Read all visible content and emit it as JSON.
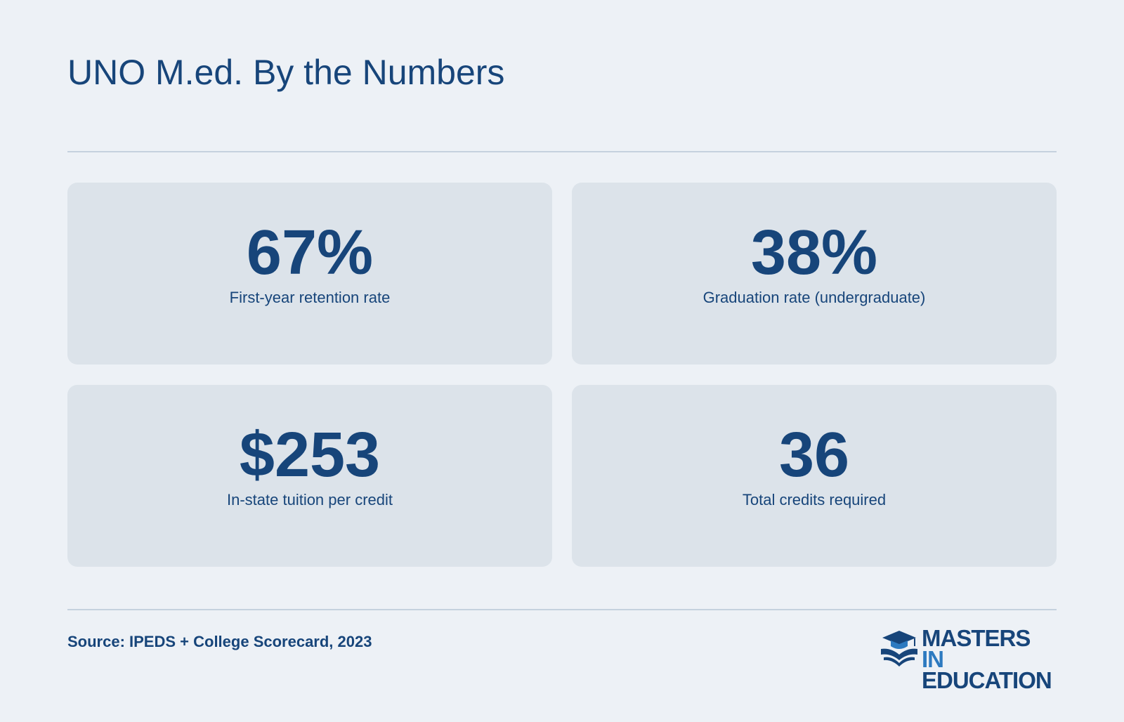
{
  "header": {
    "title": "UNO M.ed. By the Numbers"
  },
  "stats": [
    {
      "value": "67%",
      "label": "First-year retention rate"
    },
    {
      "value": "38%",
      "label": "Graduation rate (undergraduate)"
    },
    {
      "value": "$253",
      "label": "In-state tuition per credit"
    },
    {
      "value": "36",
      "label": "Total credits required"
    }
  ],
  "footer": {
    "source": "Source: IPEDS + College Scorecard, 2023",
    "logo": {
      "line1": "MASTERS",
      "accent": "IN",
      "line2": "EDUCATION"
    }
  }
}
